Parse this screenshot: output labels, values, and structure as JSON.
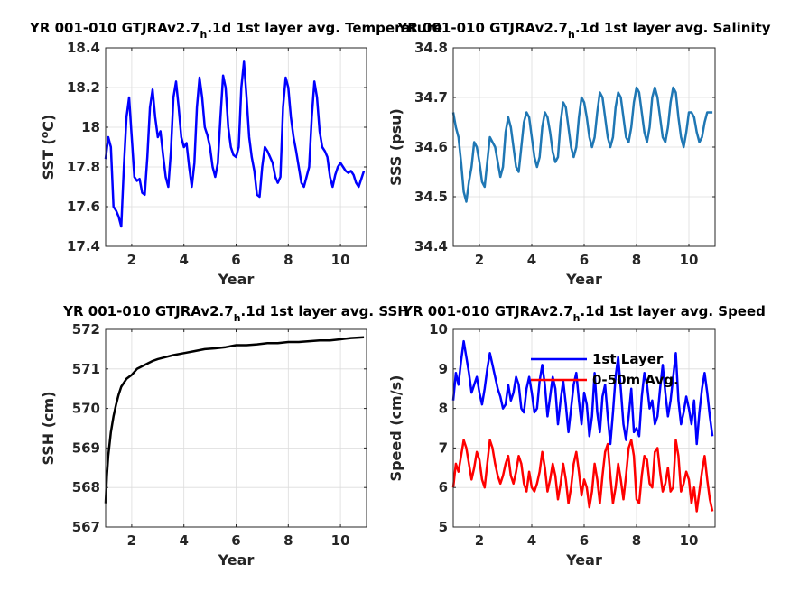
{
  "figure": {
    "background": "#ffffff",
    "grid_color": "#dcdcdc",
    "axis_color": "#262626"
  },
  "chart_data": [
    {
      "id": "sst",
      "type": "line",
      "title_main": "YR 001-010 GTJRAv2.7",
      "title_sub": "h",
      "title_rest": ".1d 1st layer avg. Temperature",
      "xlabel": "Year",
      "ylabel": "SST (°C)",
      "ylabel_main": "SST (",
      "ylabel_sup": "o",
      "ylabel_rest": "C)",
      "xlim": [
        1,
        11
      ],
      "ylim": [
        17.4,
        18.4
      ],
      "xticks": [
        2,
        4,
        6,
        8,
        10
      ],
      "yticks": [
        17.4,
        17.6,
        17.8,
        18,
        18.2,
        18.4
      ],
      "grid": true,
      "series": [
        {
          "color": "#0000ff",
          "x": [
            1.0,
            1.1,
            1.2,
            1.3,
            1.4,
            1.5,
            1.6,
            1.7,
            1.8,
            1.9,
            2.0,
            2.1,
            2.2,
            2.3,
            2.4,
            2.5,
            2.6,
            2.7,
            2.8,
            2.9,
            3.0,
            3.1,
            3.2,
            3.3,
            3.4,
            3.5,
            3.6,
            3.7,
            3.8,
            3.9,
            4.0,
            4.1,
            4.2,
            4.3,
            4.4,
            4.5,
            4.6,
            4.7,
            4.8,
            4.9,
            5.0,
            5.1,
            5.2,
            5.3,
            5.4,
            5.5,
            5.6,
            5.7,
            5.8,
            5.9,
            6.0,
            6.1,
            6.2,
            6.3,
            6.4,
            6.5,
            6.6,
            6.7,
            6.8,
            6.9,
            7.0,
            7.1,
            7.2,
            7.3,
            7.4,
            7.5,
            7.6,
            7.7,
            7.8,
            7.9,
            8.0,
            8.1,
            8.2,
            8.3,
            8.4,
            8.5,
            8.6,
            8.7,
            8.8,
            8.9,
            9.0,
            9.1,
            9.2,
            9.3,
            9.4,
            9.5,
            9.6,
            9.7,
            9.8,
            9.9,
            10.0,
            10.1,
            10.2,
            10.3,
            10.4,
            10.5,
            10.6,
            10.7,
            10.8,
            10.9
          ],
          "y": [
            17.84,
            17.95,
            17.9,
            17.6,
            17.58,
            17.55,
            17.5,
            17.8,
            18.05,
            18.15,
            17.95,
            17.75,
            17.73,
            17.74,
            17.67,
            17.66,
            17.85,
            18.1,
            18.19,
            18.05,
            17.95,
            17.98,
            17.86,
            17.75,
            17.7,
            17.88,
            18.15,
            18.23,
            18.1,
            17.95,
            17.9,
            17.92,
            17.8,
            17.7,
            17.82,
            18.1,
            18.25,
            18.15,
            18.0,
            17.96,
            17.9,
            17.8,
            17.75,
            17.82,
            18.05,
            18.26,
            18.2,
            18.0,
            17.9,
            17.86,
            17.85,
            17.9,
            18.2,
            18.33,
            18.15,
            17.95,
            17.85,
            17.78,
            17.66,
            17.65,
            17.8,
            17.9,
            17.88,
            17.85,
            17.82,
            17.75,
            17.72,
            17.75,
            18.1,
            18.25,
            18.2,
            18.05,
            17.95,
            17.88,
            17.8,
            17.72,
            17.7,
            17.75,
            17.8,
            18.05,
            18.23,
            18.15,
            17.98,
            17.9,
            17.88,
            17.85,
            17.75,
            17.7,
            17.76,
            17.8,
            17.82,
            17.8,
            17.78,
            17.77,
            17.78,
            17.76,
            17.72,
            17.7,
            17.74,
            17.78
          ]
        }
      ]
    },
    {
      "id": "sss",
      "type": "line",
      "title_main": "YR 001-010 GTJRAv2.7",
      "title_sub": "h",
      "title_rest": ".1d 1st layer avg. Salinity",
      "xlabel": "Year",
      "ylabel": "SSS (psu)",
      "xlim": [
        1,
        11
      ],
      "ylim": [
        34.4,
        34.8
      ],
      "xticks": [
        2,
        4,
        6,
        8,
        10
      ],
      "yticks": [
        34.4,
        34.5,
        34.6,
        34.7,
        34.8
      ],
      "grid": true,
      "series": [
        {
          "color": "#1f77b4",
          "x": [
            1.0,
            1.1,
            1.2,
            1.3,
            1.4,
            1.5,
            1.6,
            1.7,
            1.8,
            1.9,
            2.0,
            2.1,
            2.2,
            2.3,
            2.4,
            2.5,
            2.6,
            2.7,
            2.8,
            2.9,
            3.0,
            3.1,
            3.2,
            3.3,
            3.4,
            3.5,
            3.6,
            3.7,
            3.8,
            3.9,
            4.0,
            4.1,
            4.2,
            4.3,
            4.4,
            4.5,
            4.6,
            4.7,
            4.8,
            4.9,
            5.0,
            5.1,
            5.2,
            5.3,
            5.4,
            5.5,
            5.6,
            5.7,
            5.8,
            5.9,
            6.0,
            6.1,
            6.2,
            6.3,
            6.4,
            6.5,
            6.6,
            6.7,
            6.8,
            6.9,
            7.0,
            7.1,
            7.2,
            7.3,
            7.4,
            7.5,
            7.6,
            7.7,
            7.8,
            7.9,
            8.0,
            8.1,
            8.2,
            8.3,
            8.4,
            8.5,
            8.6,
            8.7,
            8.8,
            8.9,
            9.0,
            9.1,
            9.2,
            9.3,
            9.4,
            9.5,
            9.6,
            9.7,
            9.8,
            9.9,
            10.0,
            10.1,
            10.2,
            10.3,
            10.4,
            10.5,
            10.6,
            10.7,
            10.8,
            10.9
          ],
          "y": [
            34.67,
            34.64,
            34.62,
            34.57,
            34.51,
            34.49,
            34.53,
            34.56,
            34.61,
            34.6,
            34.57,
            34.53,
            34.52,
            34.57,
            34.62,
            34.61,
            34.6,
            34.57,
            34.54,
            34.56,
            34.63,
            34.66,
            34.64,
            34.6,
            34.56,
            34.55,
            34.6,
            34.65,
            34.67,
            34.66,
            34.62,
            34.58,
            34.56,
            34.58,
            34.64,
            34.67,
            34.66,
            34.63,
            34.59,
            34.57,
            34.58,
            34.65,
            34.69,
            34.68,
            34.64,
            34.6,
            34.58,
            34.6,
            34.66,
            34.7,
            34.69,
            34.66,
            34.62,
            34.6,
            34.62,
            34.67,
            34.71,
            34.7,
            34.66,
            34.62,
            34.6,
            34.62,
            34.68,
            34.71,
            34.7,
            34.66,
            34.62,
            34.61,
            34.64,
            34.69,
            34.72,
            34.71,
            34.67,
            34.63,
            34.61,
            34.64,
            34.7,
            34.72,
            34.7,
            34.66,
            34.62,
            34.61,
            34.64,
            34.69,
            34.72,
            34.71,
            34.66,
            34.62,
            34.6,
            34.63,
            34.67,
            34.67,
            34.66,
            34.63,
            34.61,
            34.62,
            34.65,
            34.67,
            34.67,
            34.67
          ]
        }
      ]
    },
    {
      "id": "ssh",
      "type": "line",
      "title_main": "YR 001-010 GTJRAv2.7",
      "title_sub": "h",
      "title_rest": ".1d 1st layer avg. SSH",
      "xlabel": "Year",
      "ylabel": "SSH (cm)",
      "xlim": [
        1,
        11
      ],
      "ylim": [
        567,
        572
      ],
      "xticks": [
        2,
        4,
        6,
        8,
        10
      ],
      "yticks": [
        567,
        568,
        569,
        570,
        571,
        572
      ],
      "grid": true,
      "series": [
        {
          "color": "#000000",
          "x": [
            1.0,
            1.05,
            1.1,
            1.2,
            1.3,
            1.4,
            1.5,
            1.6,
            1.8,
            2.0,
            2.2,
            2.5,
            2.8,
            3.0,
            3.3,
            3.6,
            4.0,
            4.4,
            4.8,
            5.2,
            5.6,
            6.0,
            6.4,
            6.8,
            7.2,
            7.6,
            8.0,
            8.4,
            8.8,
            9.2,
            9.6,
            10.0,
            10.4,
            10.9
          ],
          "y": [
            567.6,
            568.3,
            568.8,
            569.4,
            569.8,
            570.1,
            570.35,
            570.55,
            570.75,
            570.85,
            571.0,
            571.1,
            571.2,
            571.25,
            571.3,
            571.35,
            571.4,
            571.45,
            571.5,
            571.52,
            571.55,
            571.6,
            571.6,
            571.62,
            571.65,
            571.65,
            571.68,
            571.68,
            571.7,
            571.72,
            571.72,
            571.75,
            571.78,
            571.8
          ]
        }
      ]
    },
    {
      "id": "speed",
      "type": "line",
      "title_main": "YR 001-010 GTJRAv2.7",
      "title_sub": "h",
      "title_rest": ".1d 1st layer avg. Speed",
      "xlabel": "Year",
      "ylabel": "Speed (cm/s)",
      "xlim": [
        1,
        11
      ],
      "ylim": [
        5,
        10
      ],
      "xticks": [
        2,
        4,
        6,
        8,
        10
      ],
      "yticks": [
        5,
        6,
        7,
        8,
        9,
        10
      ],
      "grid": true,
      "legend": {
        "placement": "top-right",
        "entries": [
          "1st Layer",
          "0-50m Avg."
        ]
      },
      "series": [
        {
          "name": "1st Layer",
          "color": "#0000ff",
          "x": [
            1.0,
            1.1,
            1.2,
            1.3,
            1.4,
            1.5,
            1.6,
            1.7,
            1.8,
            1.9,
            2.0,
            2.1,
            2.2,
            2.3,
            2.4,
            2.5,
            2.6,
            2.7,
            2.8,
            2.9,
            3.0,
            3.1,
            3.2,
            3.3,
            3.4,
            3.5,
            3.6,
            3.7,
            3.8,
            3.9,
            4.0,
            4.1,
            4.2,
            4.3,
            4.4,
            4.5,
            4.6,
            4.7,
            4.8,
            4.9,
            5.0,
            5.1,
            5.2,
            5.3,
            5.4,
            5.5,
            5.6,
            5.7,
            5.8,
            5.9,
            6.0,
            6.1,
            6.2,
            6.3,
            6.4,
            6.5,
            6.6,
            6.7,
            6.8,
            6.9,
            7.0,
            7.1,
            7.2,
            7.3,
            7.4,
            7.5,
            7.6,
            7.7,
            7.8,
            7.9,
            8.0,
            8.1,
            8.2,
            8.3,
            8.4,
            8.5,
            8.6,
            8.7,
            8.8,
            8.9,
            9.0,
            9.1,
            9.2,
            9.3,
            9.4,
            9.5,
            9.6,
            9.7,
            9.8,
            9.9,
            10.0,
            10.1,
            10.2,
            10.3,
            10.4,
            10.5,
            10.6,
            10.7,
            10.8,
            10.9
          ],
          "y": [
            8.2,
            8.9,
            8.6,
            9.2,
            9.7,
            9.3,
            8.9,
            8.4,
            8.6,
            8.8,
            8.4,
            8.1,
            8.5,
            9.0,
            9.4,
            9.1,
            8.8,
            8.5,
            8.3,
            8.0,
            8.1,
            8.6,
            8.2,
            8.4,
            8.8,
            8.6,
            8.0,
            7.9,
            8.5,
            8.8,
            8.4,
            7.9,
            8.0,
            8.7,
            9.1,
            8.6,
            7.8,
            8.3,
            8.8,
            8.5,
            7.6,
            8.2,
            8.7,
            8.1,
            7.4,
            8.0,
            8.6,
            8.9,
            8.2,
            7.6,
            8.4,
            8.1,
            7.3,
            7.8,
            8.9,
            7.9,
            7.4,
            8.3,
            8.6,
            7.8,
            7.1,
            7.9,
            8.8,
            9.3,
            8.5,
            7.6,
            7.2,
            7.8,
            8.5,
            7.4,
            7.5,
            7.3,
            8.3,
            8.9,
            8.6,
            8.0,
            8.2,
            7.6,
            7.8,
            8.5,
            9.1,
            8.4,
            7.8,
            8.2,
            8.8,
            9.4,
            8.2,
            7.6,
            7.9,
            8.3,
            8.0,
            7.6,
            8.2,
            7.1,
            7.9,
            8.5,
            8.9,
            8.4,
            7.8,
            7.3
          ]
        },
        {
          "name": "0-50m Avg.",
          "color": "#ff0000",
          "x": [
            1.0,
            1.1,
            1.2,
            1.3,
            1.4,
            1.5,
            1.6,
            1.7,
            1.8,
            1.9,
            2.0,
            2.1,
            2.2,
            2.3,
            2.4,
            2.5,
            2.6,
            2.7,
            2.8,
            2.9,
            3.0,
            3.1,
            3.2,
            3.3,
            3.4,
            3.5,
            3.6,
            3.7,
            3.8,
            3.9,
            4.0,
            4.1,
            4.2,
            4.3,
            4.4,
            4.5,
            4.6,
            4.7,
            4.8,
            4.9,
            5.0,
            5.1,
            5.2,
            5.3,
            5.4,
            5.5,
            5.6,
            5.7,
            5.8,
            5.9,
            6.0,
            6.1,
            6.2,
            6.3,
            6.4,
            6.5,
            6.6,
            6.7,
            6.8,
            6.9,
            7.0,
            7.1,
            7.2,
            7.3,
            7.4,
            7.5,
            7.6,
            7.7,
            7.8,
            7.9,
            8.0,
            8.1,
            8.2,
            8.3,
            8.4,
            8.5,
            8.6,
            8.7,
            8.8,
            8.9,
            9.0,
            9.1,
            9.2,
            9.3,
            9.4,
            9.5,
            9.6,
            9.7,
            9.8,
            9.9,
            10.0,
            10.1,
            10.2,
            10.3,
            10.4,
            10.5,
            10.6,
            10.7,
            10.8,
            10.9
          ],
          "y": [
            6.0,
            6.6,
            6.4,
            6.8,
            7.2,
            7.0,
            6.6,
            6.2,
            6.5,
            6.9,
            6.7,
            6.2,
            6.0,
            6.6,
            7.2,
            7.0,
            6.6,
            6.3,
            6.1,
            6.3,
            6.6,
            6.8,
            6.3,
            6.1,
            6.4,
            6.8,
            6.6,
            6.1,
            5.9,
            6.4,
            6.0,
            5.9,
            6.1,
            6.4,
            6.9,
            6.5,
            5.9,
            6.2,
            6.6,
            6.3,
            5.7,
            6.1,
            6.6,
            6.2,
            5.6,
            6.0,
            6.6,
            6.9,
            6.4,
            5.8,
            6.2,
            6.0,
            5.5,
            5.9,
            6.6,
            6.2,
            5.6,
            6.3,
            6.9,
            7.1,
            6.3,
            5.6,
            6.0,
            6.6,
            6.2,
            5.7,
            6.3,
            7.0,
            7.2,
            6.8,
            5.7,
            5.6,
            6.3,
            6.8,
            6.7,
            6.1,
            6.0,
            6.9,
            7.0,
            6.4,
            5.9,
            6.1,
            6.5,
            5.9,
            6.0,
            7.2,
            6.8,
            5.9,
            6.1,
            6.4,
            6.2,
            5.6,
            6.0,
            5.4,
            5.9,
            6.4,
            6.8,
            6.2,
            5.7,
            5.4
          ]
        }
      ]
    }
  ]
}
